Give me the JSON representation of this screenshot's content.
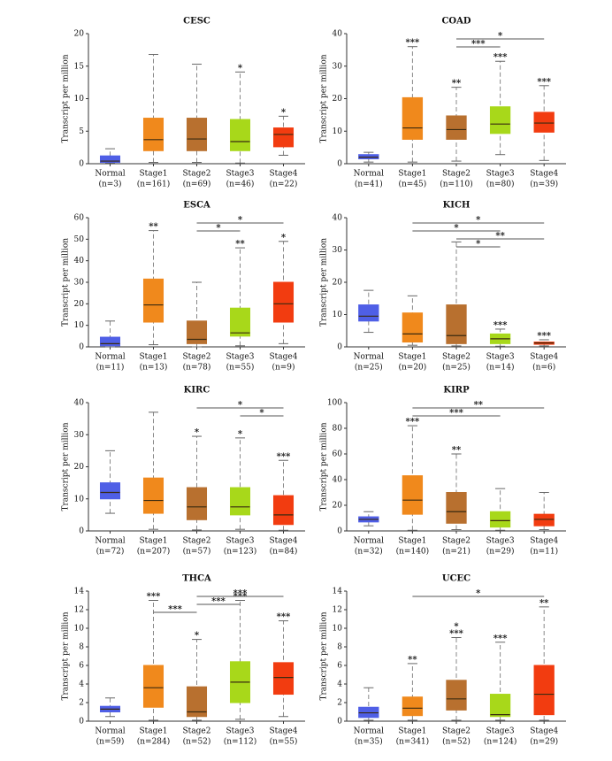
{
  "chart_data": [
    {
      "type": "box",
      "title": "CESC",
      "y_label": "Transcript per million",
      "ylim": [
        0,
        20
      ],
      "yticks": [
        0,
        5,
        10,
        15,
        20
      ],
      "categories": [
        "Normal",
        "Stage1",
        "Stage2",
        "Stage3",
        "Stage4"
      ],
      "n_labels": [
        "(n=3)",
        "(n=161)",
        "(n=69)",
        "(n=46)",
        "(n=22)"
      ],
      "colors": [
        "#4f5fe6",
        "#f0891c",
        "#b8702f",
        "#a8d81a",
        "#f23c10"
      ],
      "boxes": [
        {
          "whislo": 0.1,
          "q1": 0.2,
          "med": 0.4,
          "q3": 1.2,
          "whishi": 2.3
        },
        {
          "whislo": 0.2,
          "q1": 2,
          "med": 3.7,
          "q3": 7,
          "whishi": 16.8
        },
        {
          "whislo": 0.2,
          "q1": 2,
          "med": 3.8,
          "q3": 7,
          "whishi": 15.3
        },
        {
          "whislo": 0.1,
          "q1": 2,
          "med": 3.4,
          "q3": 6.8,
          "whishi": 14.1
        },
        {
          "whislo": 1.3,
          "q1": 2.6,
          "med": 4.5,
          "q3": 5.5,
          "whishi": 7.3
        }
      ],
      "stars": [
        null,
        null,
        null,
        [
          "*"
        ],
        [
          "*"
        ]
      ],
      "brackets": []
    },
    {
      "type": "box",
      "title": "COAD",
      "y_label": "Transcript per million",
      "ylim": [
        0,
        40
      ],
      "yticks": [
        0,
        10,
        20,
        30,
        40
      ],
      "categories": [
        "Normal",
        "Stage1",
        "Stage2",
        "Stage3",
        "Stage4"
      ],
      "n_labels": [
        "(n=41)",
        "(n=45)",
        "(n=110)",
        "(n=80)",
        "(n=39)"
      ],
      "colors": [
        "#4f5fe6",
        "#f0891c",
        "#b8702f",
        "#a8d81a",
        "#f23c10"
      ],
      "boxes": [
        {
          "whislo": 0.5,
          "q1": 1.5,
          "med": 2,
          "q3": 2.8,
          "whishi": 3.5
        },
        {
          "whislo": 0.5,
          "q1": 7.5,
          "med": 11,
          "q3": 20.3,
          "whishi": 36
        },
        {
          "whislo": 0.8,
          "q1": 7.5,
          "med": 10.5,
          "q3": 14.7,
          "whishi": 23.5
        },
        {
          "whislo": 2.8,
          "q1": 9.3,
          "med": 12.2,
          "q3": 17.5,
          "whishi": 31.5
        },
        {
          "whislo": 1,
          "q1": 9.7,
          "med": 12.5,
          "q3": 15.8,
          "whishi": 24
        }
      ],
      "stars": [
        null,
        [
          "***"
        ],
        [
          "**"
        ],
        [
          "***"
        ],
        [
          "***"
        ]
      ],
      "brackets": [
        {
          "from": 2,
          "to": 3,
          "label": "***"
        },
        {
          "from": 2,
          "to": 4,
          "label": "*"
        }
      ]
    },
    {
      "type": "box",
      "title": "ESCA",
      "y_label": "Transcript per million",
      "ylim": [
        0,
        60
      ],
      "yticks": [
        0,
        10,
        20,
        30,
        40,
        50,
        60
      ],
      "categories": [
        "Normal",
        "Stage1",
        "Stage2",
        "Stage3",
        "Stage4"
      ],
      "n_labels": [
        "(n=11)",
        "(n=13)",
        "(n=78)",
        "(n=55)",
        "(n=9)"
      ],
      "colors": [
        "#4f5fe6",
        "#f0891c",
        "#b8702f",
        "#a8d81a",
        "#f23c10"
      ],
      "boxes": [
        {
          "whislo": 0,
          "q1": 0.5,
          "med": 1.5,
          "q3": 4.5,
          "whishi": 12
        },
        {
          "whislo": 1,
          "q1": 11.5,
          "med": 19.5,
          "q3": 31.5,
          "whishi": 54
        },
        {
          "whislo": 0,
          "q1": 1.5,
          "med": 3.5,
          "q3": 12,
          "whishi": 30
        },
        {
          "whislo": 0.5,
          "q1": 5,
          "med": 6.5,
          "q3": 18,
          "whishi": 46
        },
        {
          "whislo": 1.5,
          "q1": 11.5,
          "med": 20,
          "q3": 30,
          "whishi": 49
        }
      ],
      "stars": [
        null,
        [
          "**"
        ],
        null,
        [
          "**"
        ],
        [
          "*"
        ]
      ],
      "brackets": [
        {
          "from": 2,
          "to": 3,
          "label": "*"
        },
        {
          "from": 2,
          "to": 4,
          "label": "*"
        }
      ]
    },
    {
      "type": "box",
      "title": "KICH",
      "y_label": "Transcript per million",
      "ylim": [
        0,
        40
      ],
      "yticks": [
        0,
        10,
        20,
        30,
        40
      ],
      "categories": [
        "Normal",
        "Stage1",
        "Stage2",
        "Stage3",
        "Stage4"
      ],
      "n_labels": [
        "(n=25)",
        "(n=20)",
        "(n=25)",
        "(n=14)",
        "(n=6)"
      ],
      "colors": [
        "#4f5fe6",
        "#f0891c",
        "#b8702f",
        "#a8d81a",
        "#f23c10"
      ],
      "boxes": [
        {
          "whislo": 4.5,
          "q1": 8,
          "med": 9.5,
          "q3": 13,
          "whishi": 17.5
        },
        {
          "whislo": 0.5,
          "q1": 1.5,
          "med": 4,
          "q3": 10.5,
          "whishi": 15.8
        },
        {
          "whislo": 0.3,
          "q1": 1,
          "med": 3.5,
          "q3": 13,
          "whishi": 32.5
        },
        {
          "whislo": 0.2,
          "q1": 1,
          "med": 2.5,
          "q3": 4,
          "whishi": 5.5
        },
        {
          "whislo": 0.3,
          "q1": 0.8,
          "med": 1.2,
          "q3": 1.5,
          "whishi": 2.2
        }
      ],
      "stars": [
        null,
        null,
        null,
        [
          "***"
        ],
        [
          "***"
        ]
      ],
      "brackets": [
        {
          "from": 2,
          "to": 3,
          "label": "*"
        },
        {
          "from": 2,
          "to": 4,
          "label": "**"
        },
        {
          "from": 1,
          "to": 3,
          "label": "*"
        },
        {
          "from": 1,
          "to": 4,
          "label": "*"
        }
      ]
    },
    {
      "type": "box",
      "title": "KIRC",
      "y_label": "Transcript per million",
      "ylim": [
        0,
        40
      ],
      "yticks": [
        0,
        10,
        20,
        30,
        40
      ],
      "categories": [
        "Normal",
        "Stage1",
        "Stage2",
        "Stage3",
        "Stage4"
      ],
      "n_labels": [
        "(n=72)",
        "(n=207)",
        "(n=57)",
        "(n=123)",
        "(n=84)"
      ],
      "colors": [
        "#4f5fe6",
        "#f0891c",
        "#b8702f",
        "#a8d81a",
        "#f23c10"
      ],
      "boxes": [
        {
          "whislo": 5.5,
          "q1": 10,
          "med": 12,
          "q3": 15,
          "whishi": 25
        },
        {
          "whislo": 0.5,
          "q1": 5.5,
          "med": 9.5,
          "q3": 16.5,
          "whishi": 37
        },
        {
          "whislo": 0.3,
          "q1": 3.5,
          "med": 7.5,
          "q3": 13.5,
          "whishi": 29.5
        },
        {
          "whislo": 0.5,
          "q1": 5,
          "med": 7.5,
          "q3": 13.5,
          "whishi": 29
        },
        {
          "whislo": 0.2,
          "q1": 2,
          "med": 5,
          "q3": 11,
          "whishi": 22
        }
      ],
      "stars": [
        null,
        null,
        [
          "*"
        ],
        [
          "*"
        ],
        [
          "***"
        ]
      ],
      "brackets": [
        {
          "from": 3,
          "to": 4,
          "label": "*"
        },
        {
          "from": 2,
          "to": 4,
          "label": "*"
        }
      ]
    },
    {
      "type": "box",
      "title": "KIRP",
      "y_label": "Transcript per million",
      "ylim": [
        0,
        100
      ],
      "yticks": [
        0,
        20,
        40,
        60,
        80,
        100
      ],
      "categories": [
        "Normal",
        "Stage1",
        "Stage2",
        "Stage3",
        "Stage4"
      ],
      "n_labels": [
        "(n=32)",
        "(n=140)",
        "(n=21)",
        "(n=29)",
        "(n=11)"
      ],
      "colors": [
        "#4f5fe6",
        "#f0891c",
        "#b8702f",
        "#a8d81a",
        "#f23c10"
      ],
      "boxes": [
        {
          "whislo": 4,
          "q1": 7,
          "med": 9,
          "q3": 11,
          "whishi": 15
        },
        {
          "whislo": 0.5,
          "q1": 13,
          "med": 24,
          "q3": 43,
          "whishi": 82
        },
        {
          "whislo": 1,
          "q1": 6,
          "med": 15,
          "q3": 30,
          "whishi": 60
        },
        {
          "whislo": 0.5,
          "q1": 3,
          "med": 8,
          "q3": 15,
          "whishi": 33
        },
        {
          "whislo": 1,
          "q1": 4,
          "med": 9,
          "q3": 13,
          "whishi": 30
        }
      ],
      "stars": [
        null,
        [
          "***"
        ],
        [
          "**"
        ],
        null,
        null
      ],
      "brackets": [
        {
          "from": 1,
          "to": 3,
          "label": "***"
        },
        {
          "from": 1,
          "to": 4,
          "label": "**"
        }
      ]
    },
    {
      "type": "box",
      "title": "THCA",
      "y_label": "Transcript per million",
      "ylim": [
        0,
        14
      ],
      "yticks": [
        0,
        2,
        4,
        6,
        8,
        10,
        12,
        14
      ],
      "categories": [
        "Normal",
        "Stage1",
        "Stage2",
        "Stage3",
        "Stage4"
      ],
      "n_labels": [
        "(n=59)",
        "(n=284)",
        "(n=52)",
        "(n=112)",
        "(n=55)"
      ],
      "colors": [
        "#4f5fe6",
        "#f0891c",
        "#b8702f",
        "#a8d81a",
        "#f23c10"
      ],
      "boxes": [
        {
          "whislo": 0.5,
          "q1": 1,
          "med": 1.3,
          "q3": 1.6,
          "whishi": 2.5
        },
        {
          "whislo": 0.1,
          "q1": 1.5,
          "med": 3.6,
          "q3": 6,
          "whishi": 13
        },
        {
          "whislo": 0.1,
          "q1": 0.5,
          "med": 1,
          "q3": 3.7,
          "whishi": 8.8
        },
        {
          "whislo": 0.2,
          "q1": 2,
          "med": 4.2,
          "q3": 6.4,
          "whishi": 13
        },
        {
          "whislo": 0.5,
          "q1": 2.9,
          "med": 4.7,
          "q3": 6.3,
          "whishi": 10.8
        }
      ],
      "stars": [
        null,
        [
          "***"
        ],
        [
          "*"
        ],
        [
          "***"
        ],
        [
          "***"
        ]
      ],
      "brackets": [
        {
          "from": 1,
          "to": 2,
          "label": "***"
        },
        {
          "from": 2,
          "to": 3,
          "label": "***"
        },
        {
          "from": 2,
          "to": 4,
          "label": "***"
        }
      ]
    },
    {
      "type": "box",
      "title": "UCEC",
      "y_label": "Transcript per million",
      "ylim": [
        0,
        14
      ],
      "yticks": [
        0,
        2,
        4,
        6,
        8,
        10,
        12,
        14
      ],
      "categories": [
        "Normal",
        "Stage1",
        "Stage2",
        "Stage3",
        "Stage4"
      ],
      "n_labels": [
        "(n=35)",
        "(n=341)",
        "(n=52)",
        "(n=124)",
        "(n=29)"
      ],
      "colors": [
        "#4f5fe6",
        "#f0891c",
        "#b8702f",
        "#a8d81a",
        "#f23c10"
      ],
      "boxes": [
        {
          "whislo": 0.1,
          "q1": 0.4,
          "med": 0.9,
          "q3": 1.5,
          "whishi": 3.6
        },
        {
          "whislo": 0.1,
          "q1": 0.6,
          "med": 1.4,
          "q3": 2.6,
          "whishi": 6.2
        },
        {
          "whislo": 0.1,
          "q1": 1.2,
          "med": 2.4,
          "q3": 4.4,
          "whishi": 9
        },
        {
          "whislo": 0.1,
          "q1": 0.5,
          "med": 0.7,
          "q3": 2.9,
          "whishi": 8.5
        },
        {
          "whislo": 0.1,
          "q1": 0.7,
          "med": 2.9,
          "q3": 6,
          "whishi": 12.3
        }
      ],
      "stars": [
        null,
        [
          "**"
        ],
        [
          "***",
          "*"
        ],
        [
          "***"
        ],
        [
          "**"
        ]
      ],
      "brackets": [
        {
          "from": 1,
          "to": 4,
          "label": "*"
        }
      ]
    }
  ]
}
